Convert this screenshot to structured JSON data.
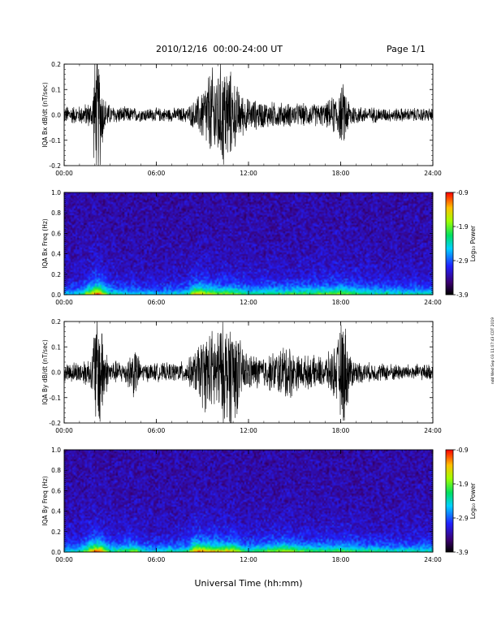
{
  "header": {
    "title": "2010/12/16  00:00-24:00 UT",
    "page": "Page 1/1"
  },
  "side_note": "ndd Wed Sep 03 11:07:43 CDT 2019",
  "chart_data": [
    {
      "type": "line",
      "ylabel": "IQA Bx dB/dt (nT/sec)",
      "ylim": [
        -0.2,
        0.2
      ],
      "yticks": [
        "0.2",
        "0.1",
        "0.0",
        "-0.1",
        "-0.2"
      ],
      "xlim": [
        0,
        24
      ],
      "xticks": [
        "00:00",
        "06:00",
        "12:00",
        "18:00",
        "24:00"
      ],
      "series": [
        {
          "envelope_x": [
            0,
            1,
            1.8,
            2.0,
            2.3,
            2.6,
            3,
            4,
            5,
            6,
            7,
            8,
            8.6,
            9,
            9.5,
            10,
            10.5,
            11,
            11.5,
            12,
            13,
            14,
            15,
            16,
            17,
            17.8,
            18.2,
            18.6,
            19,
            20,
            21,
            22,
            23,
            24
          ],
          "envelope_amplitude": [
            0.04,
            0.04,
            0.06,
            0.25,
            0.25,
            0.08,
            0.04,
            0.035,
            0.03,
            0.03,
            0.03,
            0.035,
            0.07,
            0.12,
            0.2,
            0.22,
            0.25,
            0.16,
            0.1,
            0.07,
            0.06,
            0.055,
            0.05,
            0.05,
            0.05,
            0.1,
            0.14,
            0.06,
            0.04,
            0.035,
            0.03,
            0.03,
            0.03,
            0.03
          ]
        }
      ]
    },
    {
      "type": "heatmap",
      "ylabel": "IQA Bx Freq (Hz)",
      "ylim": [
        0.0,
        1.0
      ],
      "yticks": [
        "1.0",
        "0.8",
        "0.6",
        "0.4",
        "0.2",
        "0.0"
      ],
      "xlim": [
        0,
        24
      ],
      "xticks": [
        "00:00",
        "06:00",
        "12:00",
        "18:00",
        "24:00"
      ],
      "colorbar": {
        "label": "Log₁₀ Power",
        "range": [
          -3.9,
          -0.9
        ],
        "ticks": [
          "-0.9",
          "-1.9",
          "-2.9",
          "-3.9"
        ]
      },
      "activity_x": [
        0,
        1,
        2,
        2.3,
        3,
        6,
        8,
        8.5,
        9,
        10,
        11,
        12,
        14,
        16,
        18,
        20,
        22,
        24
      ],
      "activity_level": [
        0.3,
        0.35,
        0.95,
        0.9,
        0.4,
        0.3,
        0.4,
        0.8,
        0.75,
        0.6,
        0.6,
        0.45,
        0.5,
        0.55,
        0.6,
        0.45,
        0.4,
        0.4
      ]
    },
    {
      "type": "line",
      "ylabel": "IQA By dB/dt (nT/sec)",
      "ylim": [
        -0.2,
        0.2
      ],
      "yticks": [
        "0.2",
        "0.1",
        "0.0",
        "-0.1",
        "-0.2"
      ],
      "xlim": [
        0,
        24
      ],
      "xticks": [
        "00:00",
        "06:00",
        "12:00",
        "18:00",
        "24:00"
      ],
      "series": [
        {
          "envelope_x": [
            0,
            1,
            1.8,
            2.0,
            2.4,
            2.7,
            3,
            4,
            4.6,
            5,
            6,
            7,
            8,
            8.6,
            9,
            9.5,
            10,
            10.5,
            11,
            11.5,
            12,
            13,
            14,
            14.6,
            15,
            16,
            17,
            17.7,
            18.2,
            18.6,
            19,
            20,
            21,
            22,
            23,
            24
          ],
          "envelope_amplitude": [
            0.04,
            0.05,
            0.07,
            0.26,
            0.26,
            0.1,
            0.05,
            0.05,
            0.12,
            0.04,
            0.04,
            0.04,
            0.05,
            0.1,
            0.16,
            0.18,
            0.2,
            0.22,
            0.24,
            0.13,
            0.08,
            0.07,
            0.1,
            0.14,
            0.08,
            0.07,
            0.07,
            0.12,
            0.26,
            0.08,
            0.05,
            0.04,
            0.04,
            0.035,
            0.035,
            0.035
          ]
        }
      ]
    },
    {
      "type": "heatmap",
      "ylabel": "IQA By Freq (Hz)",
      "ylim": [
        0.0,
        1.0
      ],
      "yticks": [
        "1.0",
        "0.8",
        "0.6",
        "0.4",
        "0.2",
        "0.0"
      ],
      "xlim": [
        0,
        24
      ],
      "xticks": [
        "00:00",
        "06:00",
        "12:00",
        "18:00",
        "24:00"
      ],
      "xlabel": "Universal Time (hh:mm)",
      "colorbar": {
        "label": "Log₁₀ Power",
        "range": [
          -3.9,
          -0.9
        ],
        "ticks": [
          "-0.9",
          "-1.9",
          "-2.9",
          "-3.9"
        ]
      },
      "activity_x": [
        0,
        1,
        2,
        2.3,
        3,
        4.7,
        5,
        6,
        8,
        8.5,
        9,
        10,
        11,
        11.5,
        12,
        14.5,
        16,
        18,
        20,
        22,
        24
      ],
      "activity_level": [
        0.35,
        0.4,
        0.95,
        0.9,
        0.45,
        0.6,
        0.4,
        0.35,
        0.45,
        0.9,
        0.85,
        0.75,
        0.8,
        0.55,
        0.45,
        0.7,
        0.5,
        0.55,
        0.45,
        0.4,
        0.4
      ]
    }
  ]
}
